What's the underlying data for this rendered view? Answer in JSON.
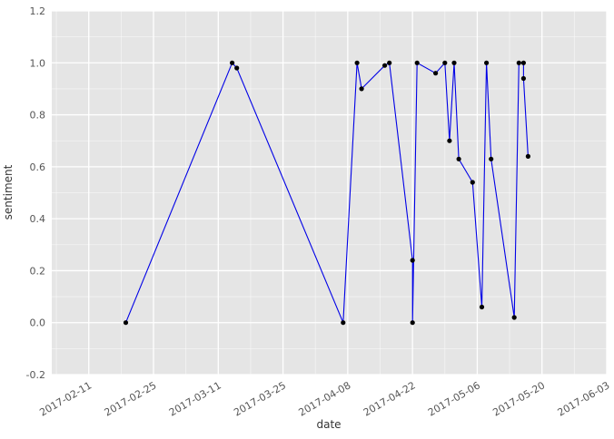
{
  "style": {
    "figure_background": "#ffffff",
    "plot_background": "#e5e5e5",
    "grid_color": "#ffffff",
    "line_color": "#0000e6",
    "marker_color": "#000000",
    "tick_label_color": "#555555",
    "axis_label_color": "#333333"
  },
  "chart_data": {
    "type": "line",
    "title": "",
    "xlabel": "date",
    "ylabel": "sentiment",
    "xlim": [
      "2017-02-03",
      "2017-06-03"
    ],
    "ylim": [
      -0.2,
      1.2
    ],
    "x_ticks": [
      "2017-02-11",
      "2017-02-25",
      "2017-03-11",
      "2017-03-25",
      "2017-04-08",
      "2017-04-22",
      "2017-05-06",
      "2017-05-20",
      "2017-06-03"
    ],
    "y_ticks": [
      -0.2,
      0.0,
      0.2,
      0.4,
      0.6,
      0.8,
      1.0,
      1.2
    ],
    "grid": true,
    "legend": false,
    "series": [
      {
        "name": "sentiment",
        "points": [
          [
            "2017-02-19",
            0.0
          ],
          [
            "2017-03-14",
            1.0
          ],
          [
            "2017-03-15",
            0.98
          ],
          [
            "2017-04-07",
            0.0
          ],
          [
            "2017-04-10",
            1.0
          ],
          [
            "2017-04-11",
            0.9
          ],
          [
            "2017-04-16",
            0.99
          ],
          [
            "2017-04-17",
            1.0
          ],
          [
            "2017-04-22",
            0.24
          ],
          [
            "2017-04-22",
            0.0
          ],
          [
            "2017-04-23",
            1.0
          ],
          [
            "2017-04-27",
            0.96
          ],
          [
            "2017-04-29",
            1.0
          ],
          [
            "2017-04-30",
            0.7
          ],
          [
            "2017-05-01",
            1.0
          ],
          [
            "2017-05-02",
            0.63
          ],
          [
            "2017-05-05",
            0.54
          ],
          [
            "2017-05-07",
            0.06
          ],
          [
            "2017-05-08",
            1.0
          ],
          [
            "2017-05-09",
            0.63
          ],
          [
            "2017-05-14",
            0.02
          ],
          [
            "2017-05-15",
            1.0
          ],
          [
            "2017-05-16",
            1.0
          ],
          [
            "2017-05-16",
            0.94
          ],
          [
            "2017-05-17",
            0.64
          ]
        ]
      }
    ]
  }
}
